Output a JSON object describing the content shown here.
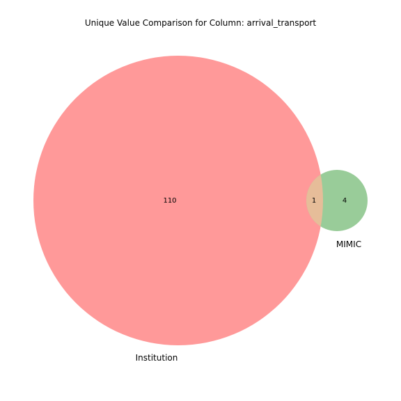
{
  "title": "Unique Value Comparison for Column: arrival_transport",
  "sets": [
    {
      "name": "Institution",
      "only_count": "110",
      "color": "#ff9999"
    },
    {
      "name": "MIMIC",
      "only_count": "4",
      "color": "#99cc99"
    }
  ],
  "intersection": {
    "count": "1",
    "color": "#e6bd99"
  }
}
